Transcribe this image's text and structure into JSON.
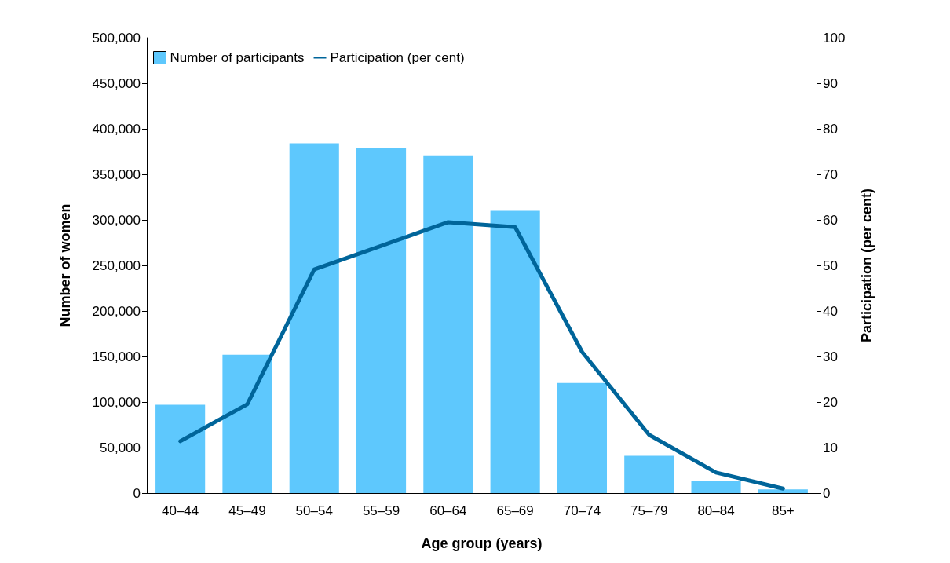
{
  "chart_data": {
    "type": "bar",
    "xlabel": "Age group (years)",
    "ylabel": "Number of women",
    "y2label": "Participation (per cent)",
    "categories": [
      "40–44",
      "45–49",
      "50–54",
      "55–59",
      "60–64",
      "65–69",
      "70–74",
      "75–79",
      "80–84",
      "85+"
    ],
    "series": [
      {
        "name": "Number of participants",
        "color": "#5ec8fd",
        "values": [
          97000,
          152000,
          384000,
          379000,
          370000,
          310000,
          121000,
          41000,
          13000,
          4000
        ]
      },
      {
        "name": "Participation (per cent)",
        "type": "line",
        "axis": "y2",
        "color": "#00659a",
        "values": [
          11.4,
          19.5,
          49.1,
          54.3,
          59.5,
          58.4,
          31.0,
          12.8,
          4.5,
          1.0
        ]
      }
    ],
    "ylim": [
      0,
      500000
    ],
    "yticks": [
      0,
      {
        "value": 50000,
        "label": "50,000"
      },
      {
        "value": 100000,
        "label": "100,000"
      },
      {
        "value": 150000,
        "label": "150,000"
      },
      {
        "value": 200000,
        "label": "200,000"
      },
      {
        "value": 250000,
        "label": "250,000"
      },
      {
        "value": 300000,
        "label": "300,000"
      },
      {
        "value": 350000,
        "label": "350,000"
      },
      {
        "value": 400000,
        "label": "400,000"
      },
      {
        "value": 450000,
        "label": "450,000"
      },
      {
        "value": 500000,
        "label": "500,000"
      }
    ],
    "y2lim": [
      0,
      100
    ],
    "y2ticks": [
      0,
      10,
      20,
      30,
      40,
      50,
      60,
      70,
      80,
      90,
      100
    ],
    "legend": "top left",
    "grid": false,
    "marker": "none",
    "line_style": "solid"
  }
}
